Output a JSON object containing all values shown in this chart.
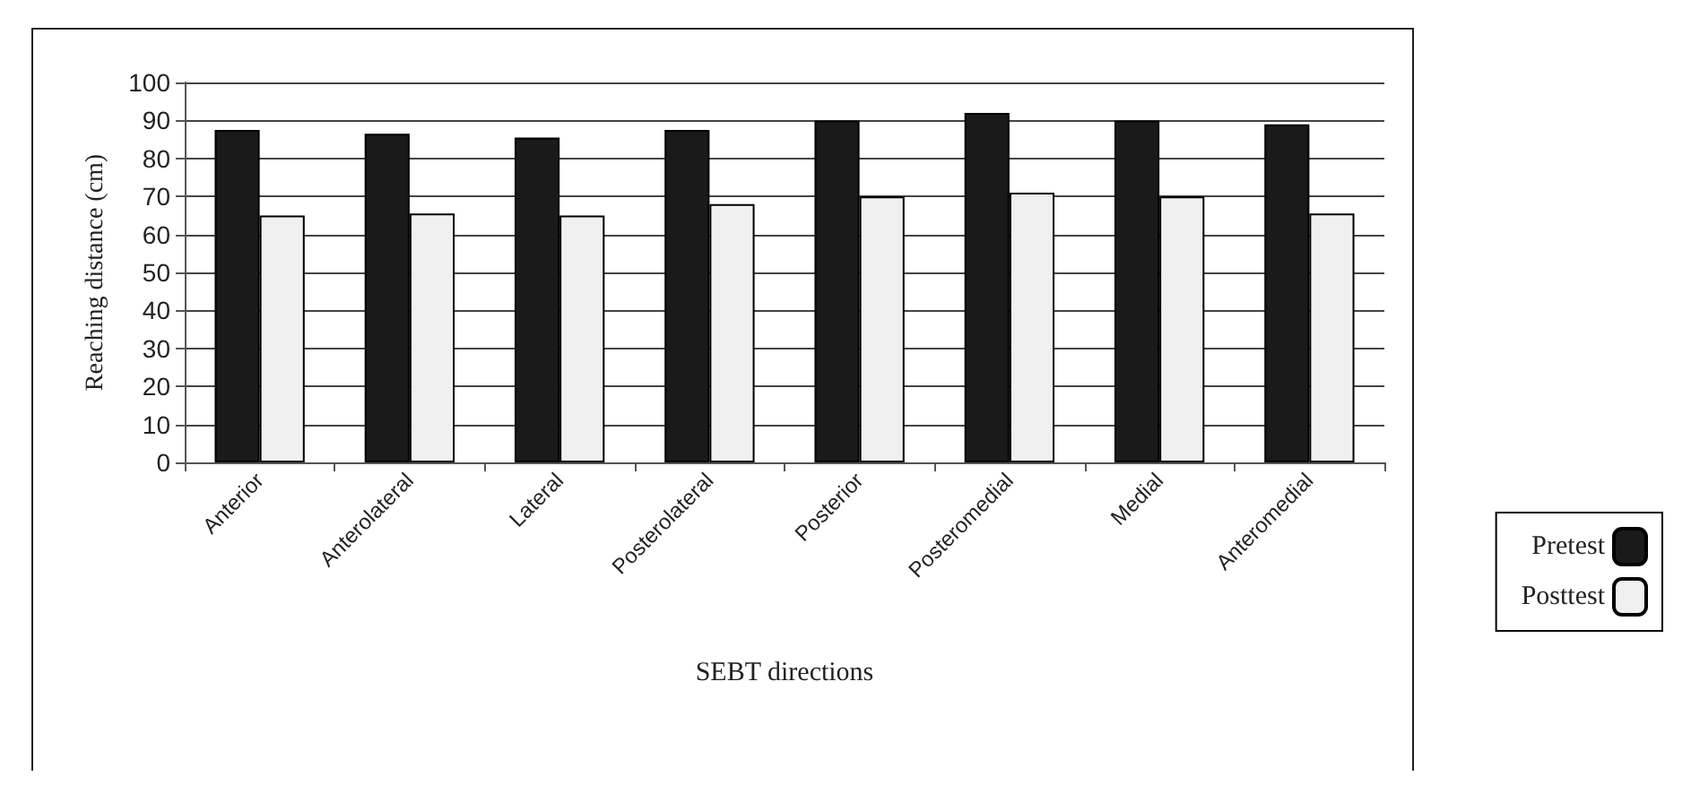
{
  "chart_data": {
    "type": "bar",
    "xlabel": "SEBT directions",
    "ylabel": "Reaching distance (cm)",
    "categories": [
      "Anterior",
      "Anterolateral",
      "Lateral",
      "Posterolateral",
      "Posterior",
      "Posteromedial",
      "Medial",
      "Anteromedial"
    ],
    "series": [
      {
        "name": "Pretest",
        "color": "#1a1a1a",
        "values": [
          87.5,
          86.5,
          85.5,
          87.5,
          90,
          92,
          90,
          89
        ]
      },
      {
        "name": "Posttest",
        "color": "#f0f0f0",
        "values": [
          65,
          65.5,
          65,
          68,
          70,
          71,
          70,
          65.5
        ]
      }
    ],
    "ylim": [
      0,
      100
    ],
    "yticks": [
      0,
      10,
      20,
      30,
      40,
      50,
      60,
      70,
      80,
      90,
      100
    ],
    "grid": "y",
    "legend": "right"
  }
}
